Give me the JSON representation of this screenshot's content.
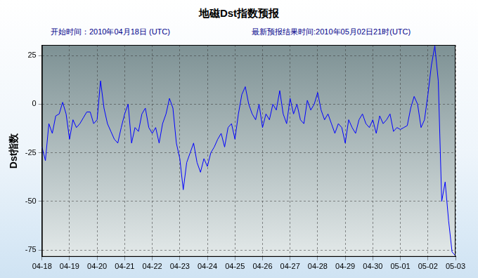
{
  "chart_data": {
    "type": "line",
    "title": "地磁Dst指数预报",
    "annotations": [
      "开始时间：2010年04月18日 (UTC)",
      "最新预报结果时间:2010年05月02日21时(UTC)"
    ],
    "y_label": "Dst指数",
    "categories": [
      "04-18",
      null,
      null,
      null,
      null,
      null,
      null,
      null,
      "04-19",
      null,
      null,
      null,
      null,
      null,
      null,
      null,
      "04-20",
      null,
      null,
      null,
      null,
      null,
      null,
      null,
      "04-21",
      null,
      null,
      null,
      null,
      null,
      null,
      null,
      "04-22",
      null,
      null,
      null,
      null,
      null,
      null,
      null,
      "04-23",
      null,
      null,
      null,
      null,
      null,
      null,
      null,
      "04-24",
      null,
      null,
      null,
      null,
      null,
      null,
      null,
      "04-25",
      null,
      null,
      null,
      null,
      null,
      null,
      null,
      "04-26",
      null,
      null,
      null,
      null,
      null,
      null,
      null,
      "04-27",
      null,
      null,
      null,
      null,
      null,
      null,
      null,
      "04-28",
      null,
      null,
      null,
      null,
      null,
      null,
      null,
      "04-29",
      null,
      null,
      null,
      null,
      null,
      null,
      null,
      "04-30",
      null,
      null,
      null,
      null,
      null,
      null,
      null,
      "05-01",
      null,
      null,
      null,
      null,
      null,
      null,
      null,
      "05-02",
      null,
      null,
      null,
      null,
      null,
      null,
      null,
      "05-03"
    ],
    "values": [
      -22,
      -29,
      -10,
      -15,
      -6,
      -5,
      1,
      -5,
      -18,
      -8,
      -12,
      -10,
      -7,
      -4,
      -4,
      -10,
      -8,
      12,
      -2,
      -10,
      -14,
      -18,
      -20,
      -12,
      -5,
      0,
      -20,
      -12,
      -14,
      -5,
      -2,
      -12,
      -15,
      -12,
      -20,
      -10,
      -5,
      3,
      -2,
      -20,
      -28,
      -44,
      -30,
      -25,
      -20,
      -30,
      -35,
      -28,
      -32,
      -25,
      -22,
      -18,
      -15,
      -22,
      -12,
      -10,
      -18,
      -5,
      5,
      9,
      0,
      -5,
      -8,
      0,
      -12,
      -5,
      -8,
      0,
      -3,
      7,
      -5,
      -10,
      3,
      -5,
      0,
      -8,
      -10,
      2,
      -3,
      0,
      6,
      -3,
      -8,
      -5,
      -10,
      -15,
      -10,
      -12,
      -20,
      -8,
      -12,
      -15,
      -8,
      -5,
      -10,
      -12,
      -8,
      -15,
      -6,
      -10,
      -8,
      -5,
      -14,
      -12,
      -13,
      -12,
      -11,
      -2,
      4,
      0,
      -12,
      -8,
      5,
      20,
      30,
      12,
      -50,
      -40,
      -60,
      -76,
      -78
    ],
    "color": "#0000ff",
    "ylim": [
      -78.5,
      30.5
    ],
    "yticks": [
      -75,
      -50,
      -25,
      0,
      25
    ],
    "grid": true
  }
}
